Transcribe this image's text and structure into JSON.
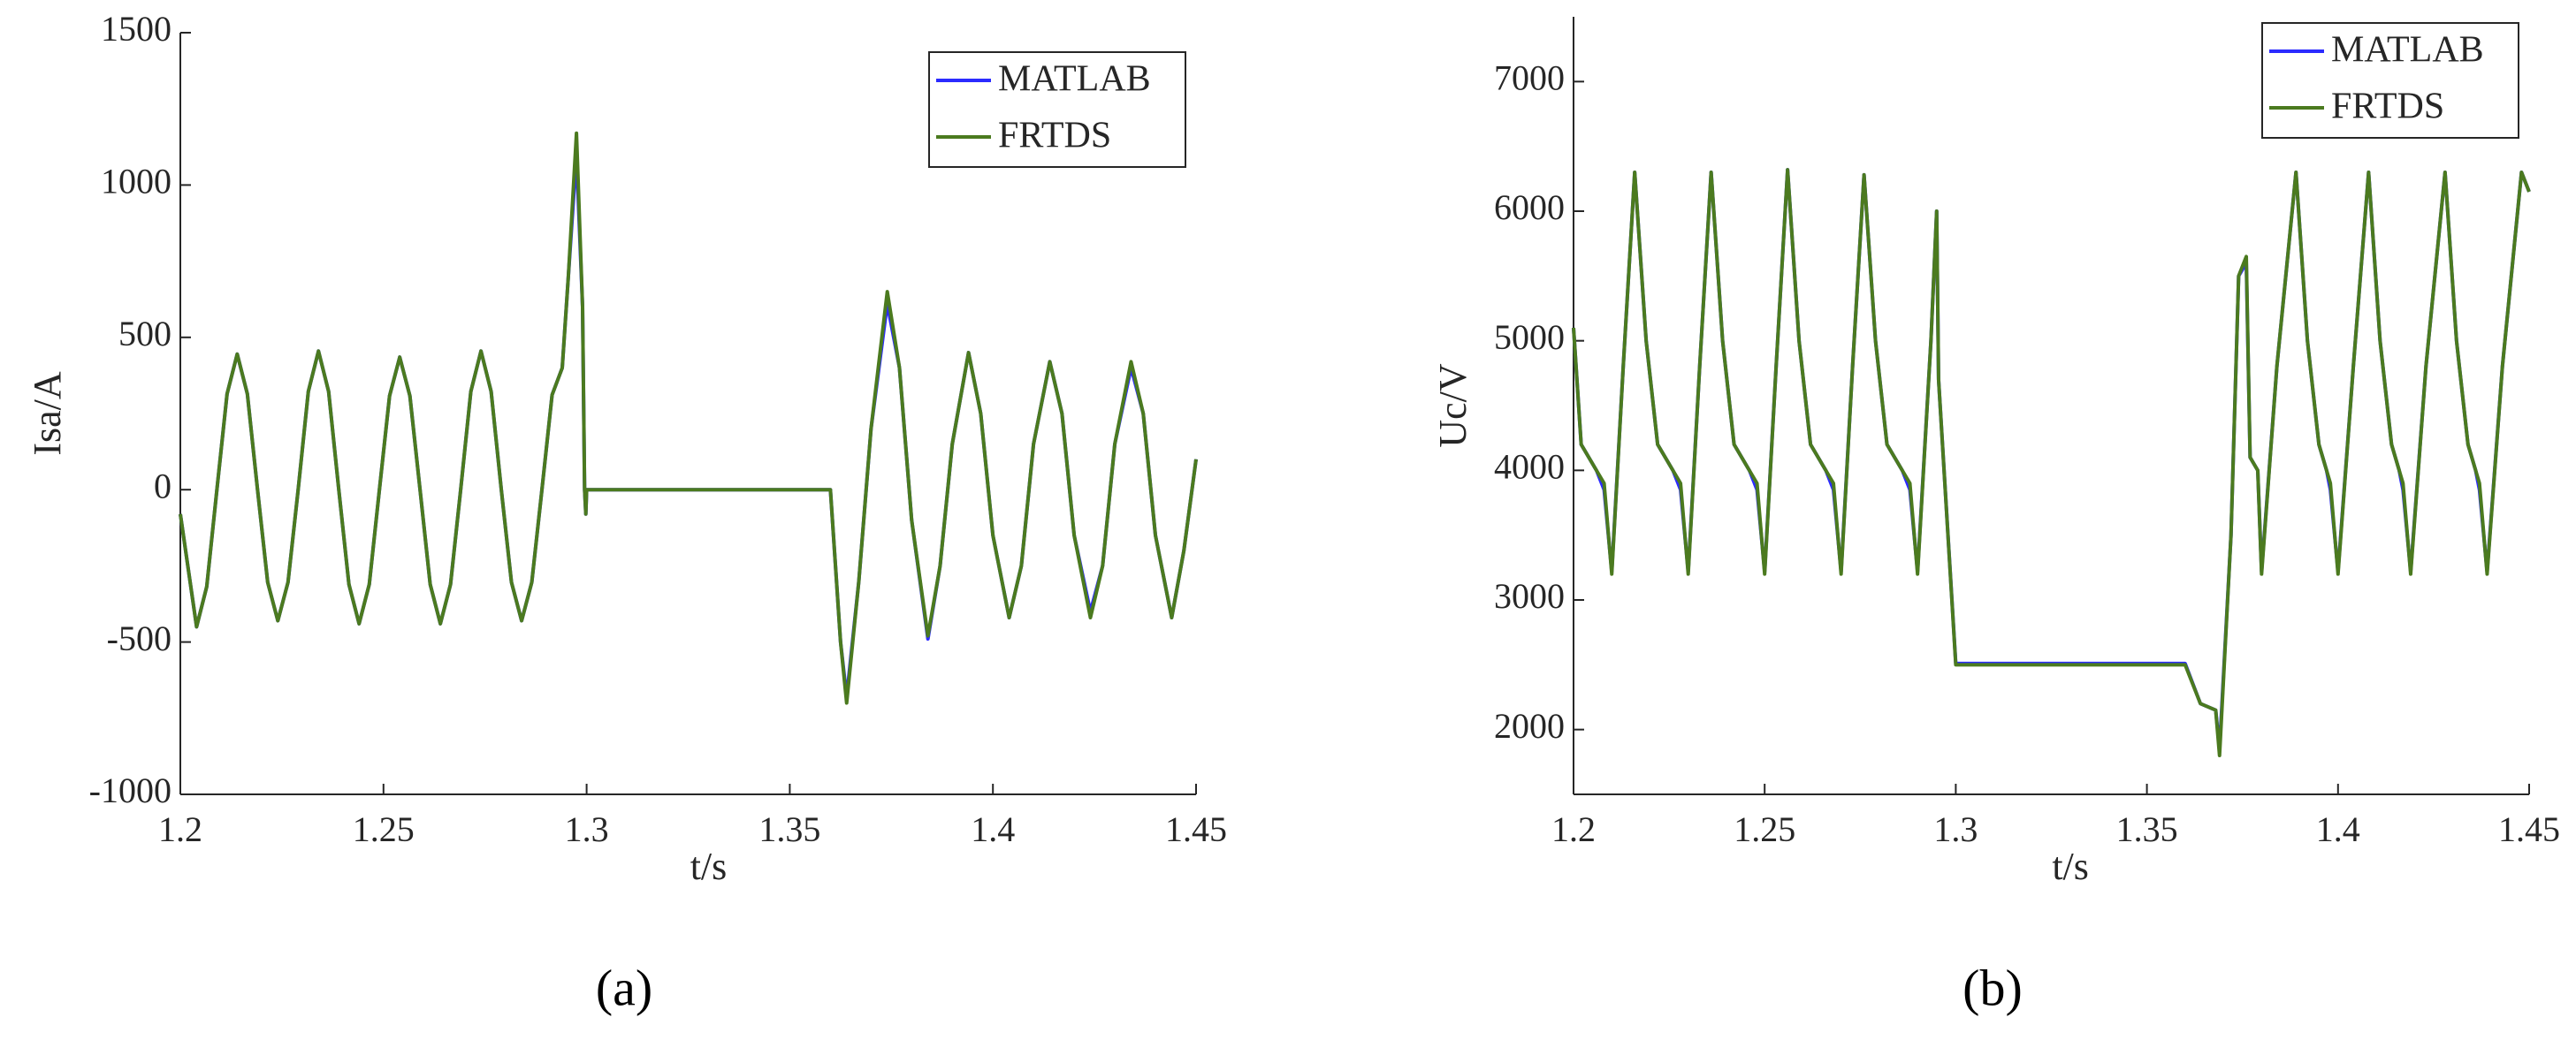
{
  "chart_data": [
    {
      "type": "line",
      "xlabel": "t/s",
      "ylabel": "Isa/A",
      "panel_label": "(a)",
      "legend": "upper right",
      "xlim": [
        1.2,
        1.45
      ],
      "xticks": [
        1.2,
        1.25,
        1.3,
        1.35,
        1.4,
        1.45
      ],
      "ylim": [
        -1000,
        1500
      ],
      "yticks": [
        -1000,
        -500,
        0,
        500,
        1000,
        1500
      ],
      "x": [
        1.2,
        1.204,
        1.2065,
        1.209,
        1.2115,
        1.214,
        1.2165,
        1.219,
        1.2215,
        1.224,
        1.2265,
        1.229,
        1.2315,
        1.234,
        1.2365,
        1.239,
        1.2415,
        1.244,
        1.2465,
        1.249,
        1.2515,
        1.254,
        1.2565,
        1.259,
        1.2615,
        1.264,
        1.2665,
        1.269,
        1.2715,
        1.274,
        1.2765,
        1.279,
        1.2815,
        1.284,
        1.2865,
        1.289,
        1.2915,
        1.294,
        1.2955,
        1.2975,
        1.299,
        1.2995,
        1.2998,
        1.3,
        1.36,
        1.3625,
        1.364,
        1.367,
        1.37,
        1.374,
        1.377,
        1.38,
        1.384,
        1.387,
        1.39,
        1.394,
        1.397,
        1.4,
        1.404,
        1.407,
        1.41,
        1.414,
        1.417,
        1.42,
        1.424,
        1.427,
        1.43,
        1.434,
        1.437,
        1.44,
        1.444,
        1.447,
        1.45
      ],
      "series": [
        {
          "name": "MATLAB",
          "color": "#2b2bff",
          "values": [
            -80,
            -450,
            -318,
            0,
            314,
            445,
            314,
            0,
            -304,
            -430,
            -304,
            0,
            322,
            455,
            322,
            0,
            -311,
            -440,
            -311,
            0,
            308,
            435,
            308,
            0,
            -311,
            -440,
            -311,
            0,
            322,
            455,
            322,
            0,
            -304,
            -430,
            -304,
            0,
            311,
            400,
            700,
            1100,
            600,
            0,
            -80,
            0,
            0,
            -500,
            -680,
            -300,
            200,
            610,
            400,
            -100,
            -490,
            -250,
            150,
            450,
            250,
            -150,
            -420,
            -250,
            150,
            420,
            250,
            -150,
            -400,
            -250,
            150,
            400,
            250,
            -150,
            -420,
            -200,
            100
          ]
        },
        {
          "name": "FRTDS",
          "color": "#4b7a1f",
          "values": [
            -80,
            -450,
            -318,
            0,
            314,
            445,
            314,
            0,
            -304,
            -430,
            -304,
            0,
            322,
            455,
            322,
            0,
            -311,
            -440,
            -311,
            0,
            308,
            435,
            308,
            0,
            -311,
            -440,
            -311,
            0,
            322,
            455,
            322,
            0,
            -304,
            -430,
            -304,
            0,
            311,
            400,
            700,
            1170,
            600,
            0,
            -80,
            0,
            0,
            -500,
            -700,
            -300,
            200,
            650,
            400,
            -100,
            -480,
            -250,
            150,
            450,
            250,
            -150,
            -420,
            -250,
            150,
            420,
            250,
            -150,
            -420,
            -250,
            150,
            420,
            250,
            -150,
            -420,
            -200,
            100
          ]
        }
      ]
    },
    {
      "type": "line",
      "xlabel": "t/s",
      "ylabel": "Uc/V",
      "panel_label": "(b)",
      "legend": "upper right",
      "xlim": [
        1.2,
        1.45
      ],
      "xticks": [
        1.2,
        1.25,
        1.3,
        1.35,
        1.4,
        1.45
      ],
      "ylim": [
        1500,
        7500
      ],
      "yticks": [
        2000,
        3000,
        4000,
        5000,
        6000,
        7000
      ],
      "x": [
        1.2,
        1.202,
        1.206,
        1.208,
        1.21,
        1.213,
        1.216,
        1.219,
        1.222,
        1.226,
        1.228,
        1.23,
        1.233,
        1.236,
        1.239,
        1.242,
        1.246,
        1.248,
        1.25,
        1.253,
        1.256,
        1.259,
        1.262,
        1.266,
        1.268,
        1.27,
        1.273,
        1.276,
        1.279,
        1.282,
        1.286,
        1.288,
        1.29,
        1.2935,
        1.295,
        1.2955,
        1.3,
        1.36,
        1.364,
        1.368,
        1.369,
        1.372,
        1.374,
        1.376,
        1.377,
        1.379,
        1.38,
        1.384,
        1.389,
        1.392,
        1.395,
        1.397,
        1.398,
        1.4,
        1.404,
        1.408,
        1.411,
        1.414,
        1.416,
        1.417,
        1.419,
        1.423,
        1.428,
        1.431,
        1.434,
        1.436,
        1.437,
        1.439,
        1.443,
        1.448,
        1.45
      ],
      "series": [
        {
          "name": "MATLAB",
          "color": "#2b2bff",
          "values": [
            5100,
            4200,
            4000,
            3850,
            3220,
            4800,
            6300,
            5000,
            4200,
            4000,
            3850,
            3220,
            4800,
            6300,
            5000,
            4200,
            4000,
            3850,
            3220,
            4800,
            6320,
            5000,
            4200,
            4000,
            3850,
            3220,
            4800,
            6280,
            5000,
            4200,
            4000,
            3850,
            3220,
            5000,
            6000,
            4700,
            2510,
            2510,
            2200,
            2150,
            1850,
            3500,
            5500,
            5600,
            4100,
            4000,
            3220,
            4800,
            6300,
            5000,
            4200,
            4000,
            3850,
            3220,
            4800,
            6300,
            5000,
            4200,
            4000,
            3850,
            3220,
            4800,
            6300,
            5000,
            4200,
            4000,
            3850,
            3220,
            4800,
            6300,
            6150
          ]
        },
        {
          "name": "FRTDS",
          "color": "#4b7a1f",
          "values": [
            5100,
            4200,
            4000,
            3900,
            3200,
            4800,
            6300,
            5000,
            4200,
            4000,
            3900,
            3200,
            4800,
            6300,
            5000,
            4200,
            4000,
            3900,
            3200,
            4800,
            6320,
            5000,
            4200,
            4000,
            3900,
            3200,
            4800,
            6280,
            5000,
            4200,
            4000,
            3900,
            3200,
            5000,
            6000,
            4700,
            2500,
            2500,
            2200,
            2150,
            1800,
            3500,
            5500,
            5650,
            4100,
            4000,
            3200,
            4800,
            6300,
            5000,
            4200,
            4000,
            3900,
            3200,
            4800,
            6300,
            5000,
            4200,
            4000,
            3900,
            3200,
            4800,
            6300,
            5000,
            4200,
            4000,
            3900,
            3200,
            4800,
            6300,
            6150
          ]
        }
      ]
    }
  ]
}
